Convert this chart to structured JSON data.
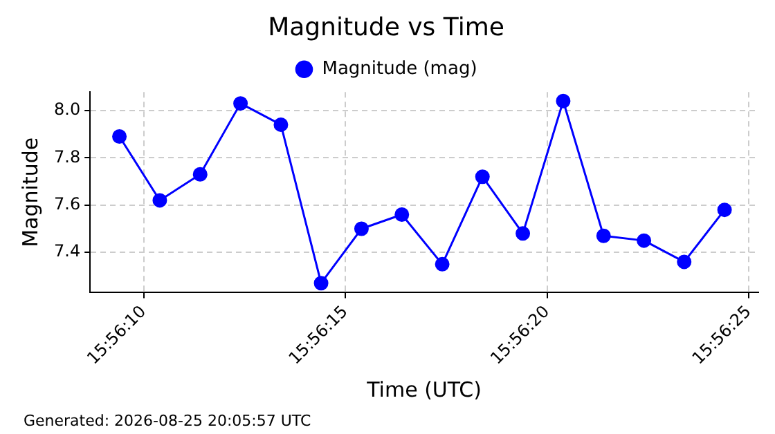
{
  "chart_data": {
    "type": "line",
    "title": "Magnitude vs Time",
    "xlabel": "Time (UTC)",
    "ylabel": "Magnitude",
    "x": [
      15.935944,
      15.936222,
      15.9365,
      15.936778,
      15.937056,
      15.937333,
      15.937611,
      15.937889,
      15.938167,
      15.938444,
      15.938722,
      15.939,
      15.939278,
      15.939556,
      15.939833,
      15.940111
    ],
    "series": [
      {
        "name": "Magnitude (mag)",
        "color": "#0000ff",
        "values": [
          7.89,
          7.62,
          7.73,
          8.03,
          7.94,
          7.27,
          7.5,
          7.56,
          7.35,
          7.72,
          7.48,
          8.04,
          7.47,
          7.45,
          7.36,
          7.58
        ]
      }
    ],
    "xlim": [
      15.935742,
      15.940344
    ],
    "xticks": [
      {
        "value": 15.936111,
        "label": "15:56:10"
      },
      {
        "value": 15.9375,
        "label": "15:56:15"
      },
      {
        "value": 15.938889,
        "label": "15:56:20"
      },
      {
        "value": 15.940278,
        "label": "15:56:25"
      }
    ],
    "ylim": [
      7.23,
      8.078
    ],
    "yticks": [
      7.4,
      7.6,
      7.8,
      {
        "value": 8,
        "label": "8.0"
      }
    ],
    "grid": true,
    "legend": "top",
    "marker": "circle",
    "line_style": "solid",
    "annotations": [
      "Generated: 2026-08-25 20:05:57 UTC"
    ]
  }
}
